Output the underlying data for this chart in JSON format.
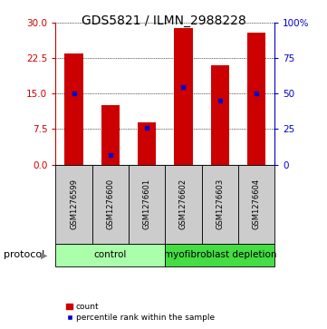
{
  "title": "GDS5821 / ILMN_2988228",
  "samples": [
    "GSM1276599",
    "GSM1276600",
    "GSM1276601",
    "GSM1276602",
    "GSM1276603",
    "GSM1276604"
  ],
  "counts": [
    23.5,
    12.5,
    9.0,
    29.0,
    21.0,
    28.0
  ],
  "percentile_ranks": [
    50,
    7,
    26,
    55,
    45,
    50
  ],
  "ylim_left": [
    0,
    30
  ],
  "ylim_right": [
    0,
    100
  ],
  "yticks_left": [
    0,
    7.5,
    15,
    22.5,
    30
  ],
  "yticks_right": [
    0,
    25,
    50,
    75,
    100
  ],
  "bar_color": "#cc0000",
  "dot_color": "#0000cc",
  "bar_width": 0.5,
  "groups": [
    {
      "label": "control",
      "n": 3,
      "color": "#aaffaa"
    },
    {
      "label": "myofibroblast depletion",
      "n": 3,
      "color": "#44dd44"
    }
  ],
  "protocol_label": "protocol",
  "legend_count_label": "count",
  "legend_percentile_label": "percentile rank within the sample",
  "tick_area_bg": "#cccccc",
  "left_tick_color": "#cc0000",
  "right_tick_color": "#0000cc",
  "title_fontsize": 10,
  "tick_fontsize": 7.5,
  "sample_fontsize": 6,
  "protocol_fontsize": 8,
  "legend_fontsize": 6.5
}
